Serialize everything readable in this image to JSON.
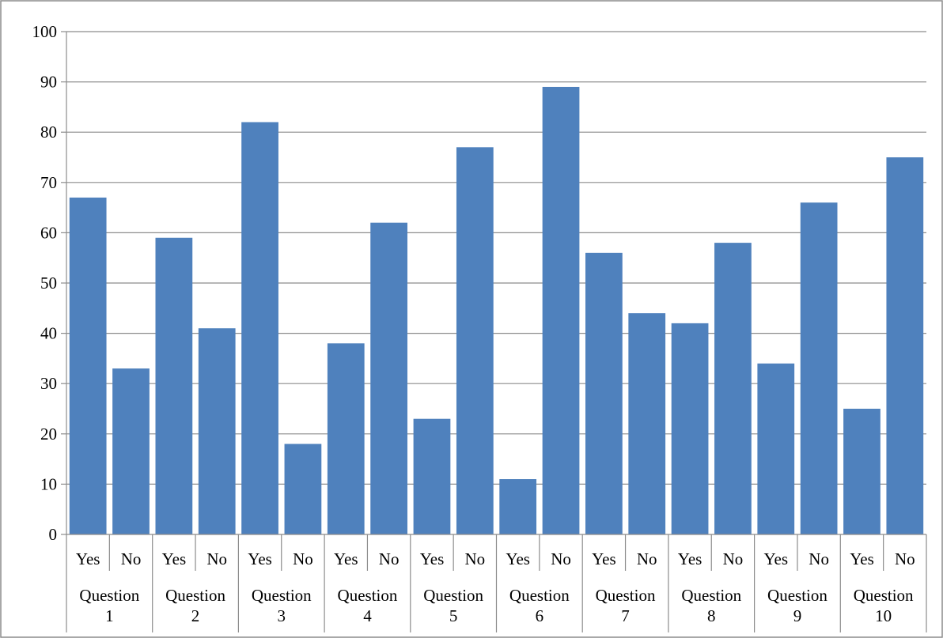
{
  "chart_data": {
    "type": "bar",
    "title": "",
    "xlabel": "",
    "ylabel": "",
    "ylim": [
      0,
      100
    ],
    "yticks": [
      "0",
      "10",
      "20",
      "30",
      "40",
      "50",
      "60",
      "70",
      "80",
      "90",
      "100"
    ],
    "grid": true,
    "legend": "none",
    "bar_color": "#4f81bd",
    "categories": [
      {
        "group": [
          "Question",
          "1"
        ],
        "answer": "Yes",
        "value": 67
      },
      {
        "group": [
          "Question",
          "1"
        ],
        "answer": "No",
        "value": 33
      },
      {
        "group": [
          "Question",
          "2"
        ],
        "answer": "Yes",
        "value": 59
      },
      {
        "group": [
          "Question",
          "2"
        ],
        "answer": "No",
        "value": 41
      },
      {
        "group": [
          "Question",
          "3"
        ],
        "answer": "Yes",
        "value": 82
      },
      {
        "group": [
          "Question",
          "3"
        ],
        "answer": "No",
        "value": 18
      },
      {
        "group": [
          "Question",
          "4"
        ],
        "answer": "Yes",
        "value": 38
      },
      {
        "group": [
          "Question",
          "4"
        ],
        "answer": "No",
        "value": 62
      },
      {
        "group": [
          "Question",
          "5"
        ],
        "answer": "Yes",
        "value": 23
      },
      {
        "group": [
          "Question",
          "5"
        ],
        "answer": "No",
        "value": 77
      },
      {
        "group": [
          "Question",
          "6"
        ],
        "answer": "Yes",
        "value": 11
      },
      {
        "group": [
          "Question",
          "6"
        ],
        "answer": "No",
        "value": 89
      },
      {
        "group": [
          "Question",
          "7"
        ],
        "answer": "Yes",
        "value": 56
      },
      {
        "group": [
          "Question",
          "7"
        ],
        "answer": "No",
        "value": 44
      },
      {
        "group": [
          "Question",
          "8"
        ],
        "answer": "Yes",
        "value": 42
      },
      {
        "group": [
          "Question",
          "8"
        ],
        "answer": "No",
        "value": 58
      },
      {
        "group": [
          "Question",
          "9"
        ],
        "answer": "Yes",
        "value": 34
      },
      {
        "group": [
          "Question",
          "9"
        ],
        "answer": "No",
        "value": 66
      },
      {
        "group": [
          "Question",
          "10"
        ],
        "answer": "Yes",
        "value": 25
      },
      {
        "group": [
          "Question",
          "10"
        ],
        "answer": "No",
        "value": 75
      }
    ]
  }
}
